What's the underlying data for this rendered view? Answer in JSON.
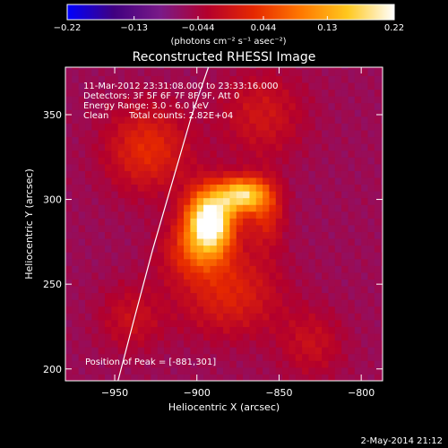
{
  "chart_data": {
    "type": "heatmap",
    "title": "Reconstructed RHESSI Image",
    "xlabel": "Heliocentric X (arcsec)",
    "ylabel": "Heliocentric Y (arcsec)",
    "xlim": [
      -980,
      -787
    ],
    "ylim": [
      193,
      378
    ],
    "x_ticks": [
      -950,
      -900,
      -850,
      -800
    ],
    "y_ticks": [
      200,
      250,
      300,
      350
    ],
    "x_tick_labels": [
      "−950",
      "−900",
      "−850",
      "−800"
    ],
    "y_tick_labels": [
      "200",
      "250",
      "300",
      "350"
    ],
    "colorbar": {
      "range": [
        -0.22,
        0.22
      ],
      "ticks": [
        -0.22,
        -0.13,
        -0.044,
        0.044,
        0.13,
        0.22
      ],
      "tick_labels": [
        "−0.22",
        "−0.13",
        "−0.044",
        "0.044",
        "0.13",
        "0.22"
      ],
      "unit_label": "(photons cm⁻² s⁻¹ asec⁻²)",
      "colormap": [
        "#0000ff",
        "#400080",
        "#7a1a88",
        "#b4002c",
        "#e62800",
        "#ff7800",
        "#ffc81e",
        "#ffffff"
      ]
    },
    "background_value": -0.06,
    "sources": [
      {
        "x": -892,
        "y": 288,
        "sx": 10,
        "sy": 13,
        "amp": 0.3
      },
      {
        "x": -872,
        "y": 303,
        "sx": 10,
        "sy": 7,
        "amp": 0.22
      },
      {
        "x": -902,
        "y": 270,
        "sx": 14,
        "sy": 12,
        "amp": 0.08
      },
      {
        "x": -858,
        "y": 292,
        "sx": 8,
        "sy": 14,
        "amp": 0.08
      },
      {
        "x": -930,
        "y": 330,
        "sx": 18,
        "sy": 18,
        "amp": 0.09
      },
      {
        "x": -860,
        "y": 350,
        "sx": 18,
        "sy": 18,
        "amp": 0.06
      },
      {
        "x": -880,
        "y": 245,
        "sx": 22,
        "sy": 18,
        "amp": 0.08
      },
      {
        "x": -940,
        "y": 230,
        "sx": 14,
        "sy": 14,
        "amp": 0.05
      },
      {
        "x": -830,
        "y": 215,
        "sx": 14,
        "sy": 14,
        "amp": 0.05
      }
    ],
    "limb_curve": [
      [
        -948,
        193
      ],
      [
        -938,
        230
      ],
      [
        -927,
        270
      ],
      [
        -915,
        310
      ],
      [
        -903,
        350
      ],
      [
        -893,
        378
      ]
    ],
    "annotations": {
      "time_range": "11-Mar-2012 23:31:08.000 to 23:33:16.000",
      "detectors": "Detectors: 3F 5F 6F 7F 8F 9F, Att 0",
      "energy_range": "Energy Range: 3.0 - 6.0 keV",
      "clean_method": "Clean",
      "total_counts": "Total counts: 2.82E+04",
      "peak_position": "Position of Peak = [-881,301]"
    },
    "footer_date": "2-May-2014 21:12"
  }
}
